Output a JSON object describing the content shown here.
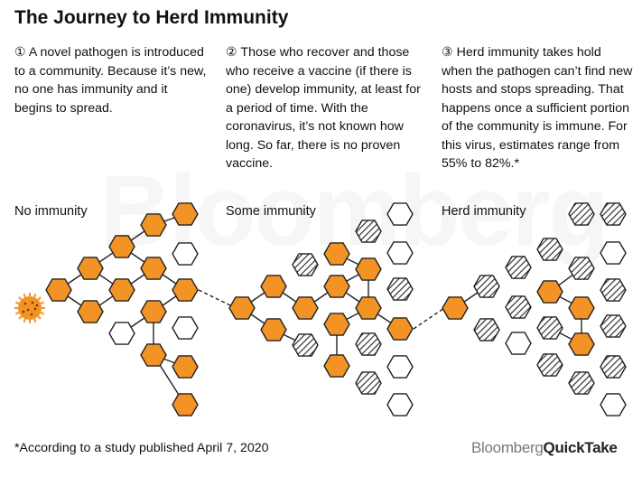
{
  "title": "The Journey to Herd Immunity",
  "watermark": "Bloomberg",
  "columns": [
    {
      "text": "① A novel pathogen is introduced to a community. Because it’s new, no one has immunity and it begins to spread."
    },
    {
      "text": "② Those who recover and those who receive a vaccine (if there is one) develop immunity, at least for a period of time. With the coronavirus, it’s not known how long. So far, there is no proven vaccine."
    },
    {
      "text": "③ Herd immunity takes hold when the pathogen can’t find new hosts and stops spreading. That happens once a sufficient portion of the community is immune. For this virus, estimates range from 55% to 82%.*"
    }
  ],
  "stages": [
    {
      "label": "No immunity"
    },
    {
      "label": "Some immunity"
    },
    {
      "label": "Herd immunity"
    }
  ],
  "footnote": "*According to a study published April 7, 2020",
  "brand": {
    "part1": "Bloomberg",
    "part2": "QuickTake"
  },
  "colors": {
    "infected": "#f39325",
    "immune_hatch": "#333333",
    "outline": "#222222",
    "text": "#111111"
  },
  "legend_states": [
    "infected",
    "susceptible",
    "immune"
  ]
}
